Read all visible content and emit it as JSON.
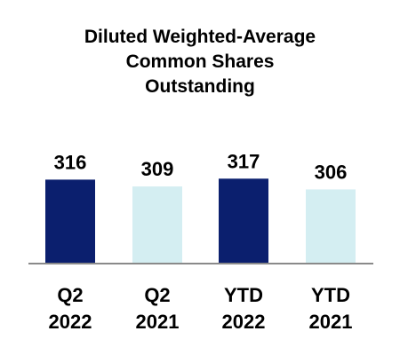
{
  "chart_data": {
    "type": "bar",
    "title": "Diluted Weighted-Average Common Shares Outstanding",
    "title_lines": [
      "Diluted Weighted-Average",
      "Common Shares",
      "Outstanding"
    ],
    "categories": [
      [
        "Q2",
        "2022"
      ],
      [
        "Q2",
        "2021"
      ],
      [
        "YTD",
        "2022"
      ],
      [
        "YTD",
        "2021"
      ]
    ],
    "values": [
      316,
      309,
      317,
      306
    ],
    "data_labels": [
      "316",
      "309",
      "317",
      "306"
    ],
    "bar_colors": [
      "#0b1f6e",
      "#d4eef2",
      "#0b1f6e",
      "#d4eef2"
    ],
    "axis_color": "#8a8a8a",
    "grid": false,
    "legend": "none",
    "xlabel": "",
    "ylabel": ""
  }
}
